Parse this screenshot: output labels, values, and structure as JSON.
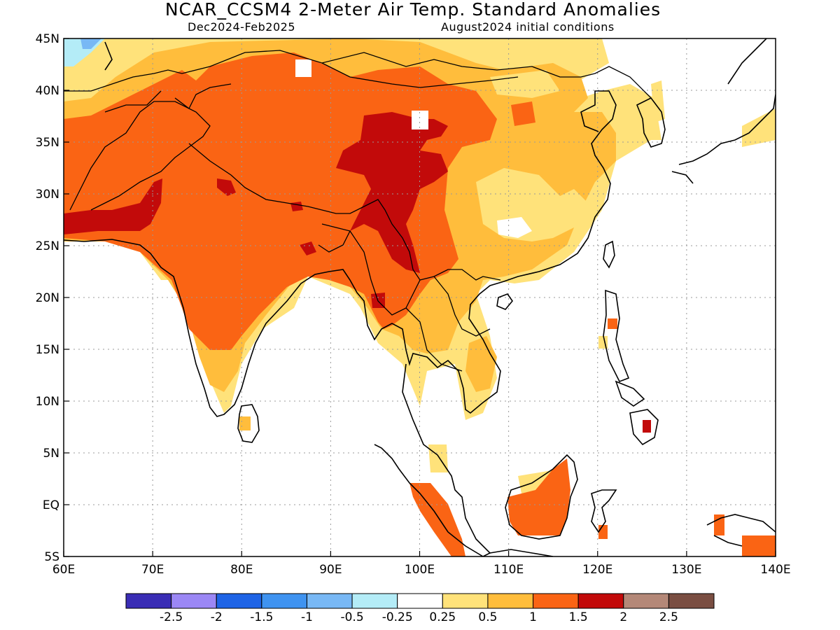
{
  "header": {
    "title": "NCAR_CCSM4 2-Meter Air Temp. Standard Anomalies",
    "period": "Dec2024-Feb2025",
    "init": "August2024 initial conditions"
  },
  "map": {
    "lon_range": [
      60,
      140
    ],
    "lat_range": [
      -5,
      45
    ],
    "lon_ticks": [
      "60E",
      "70E",
      "80E",
      "90E",
      "100E",
      "110E",
      "120E",
      "130E",
      "140E"
    ],
    "lat_ticks": [
      "45N",
      "40N",
      "35N",
      "30N",
      "25N",
      "20N",
      "15N",
      "10N",
      "5N",
      "EQ",
      "5S"
    ],
    "gridlines": "dotted"
  },
  "colorbar": {
    "colors": [
      "#3a2db5",
      "#9b87f5",
      "#1e64e6",
      "#3f93f0",
      "#78b8f5",
      "#b4ecf7",
      "#ffffff",
      "#ffe27a",
      "#ffbd3c",
      "#fa6414",
      "#c20a0a",
      "#b48878",
      "#7a4e42"
    ],
    "labels": [
      "-2.5",
      "-2",
      "-1.5",
      "-1",
      "-0.5",
      "-0.25",
      "0.25",
      "0.5",
      "1",
      "1.5",
      "2",
      "2.5"
    ]
  }
}
